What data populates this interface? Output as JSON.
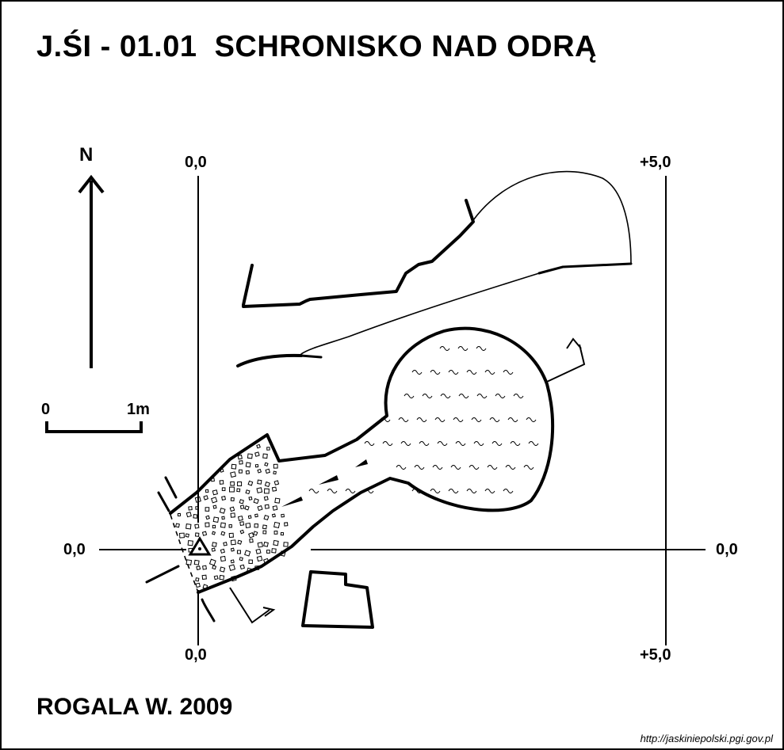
{
  "title": "J.ŚI - 01.01  SCHRONISKO NAD ODRĄ",
  "author": "ROGALA W. 2009",
  "source_url": "http://jaskiniepolski.pgi.gov.pl",
  "north_label": "N",
  "scale_bar": {
    "start_label": "0",
    "end_label": "1m"
  },
  "grid_labels": {
    "top_left": "0,0",
    "top_right": "+5,0",
    "left": "0,0",
    "right": "0,0",
    "bottom_left": "0,0",
    "bottom_right": "+5,0"
  },
  "legend_symbols": [
    "entrance-triangle",
    "rock-debris-fill",
    "water-wave-fill",
    "inclined-arrows"
  ],
  "colors": {
    "ink": "#000000",
    "paper": "#ffffff"
  }
}
